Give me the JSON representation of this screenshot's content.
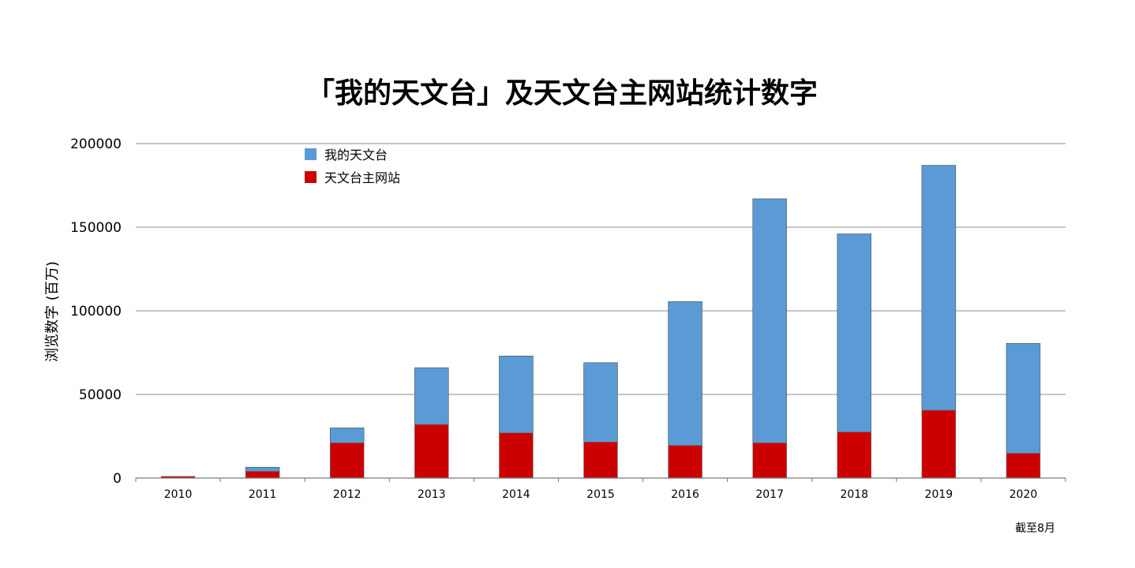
{
  "chart_data": {
    "type": "bar",
    "stacked": true,
    "title": "「我的天文台」及天文台主网站统计数字",
    "xlabel": "",
    "ylabel": "浏览数字 (百万)",
    "ylim": [
      0,
      200000
    ],
    "yticks": [
      "0",
      "50000",
      "100000",
      "150000",
      "200000"
    ],
    "categories": [
      "2010",
      "2011",
      "2012",
      "2013",
      "2014",
      "2015",
      "2016",
      "2017",
      "2018",
      "2019",
      "2020"
    ],
    "series": [
      {
        "name": "天文台主网站",
        "color": "#cc0000",
        "values": [
          1000,
          4000,
          21000,
          32000,
          27000,
          21500,
          19500,
          21000,
          27500,
          40500,
          14800
        ]
      },
      {
        "name": "我的天文台",
        "color": "#5b9bd5",
        "values": [
          0,
          2500,
          9000,
          34000,
          46000,
          47500,
          86000,
          146000,
          118500,
          146500,
          65700
        ]
      }
    ],
    "legend": {
      "placement": "top-left",
      "order": [
        "我的天文台",
        "天文台主网站"
      ]
    },
    "grid": true,
    "annotation": "截至8月"
  }
}
